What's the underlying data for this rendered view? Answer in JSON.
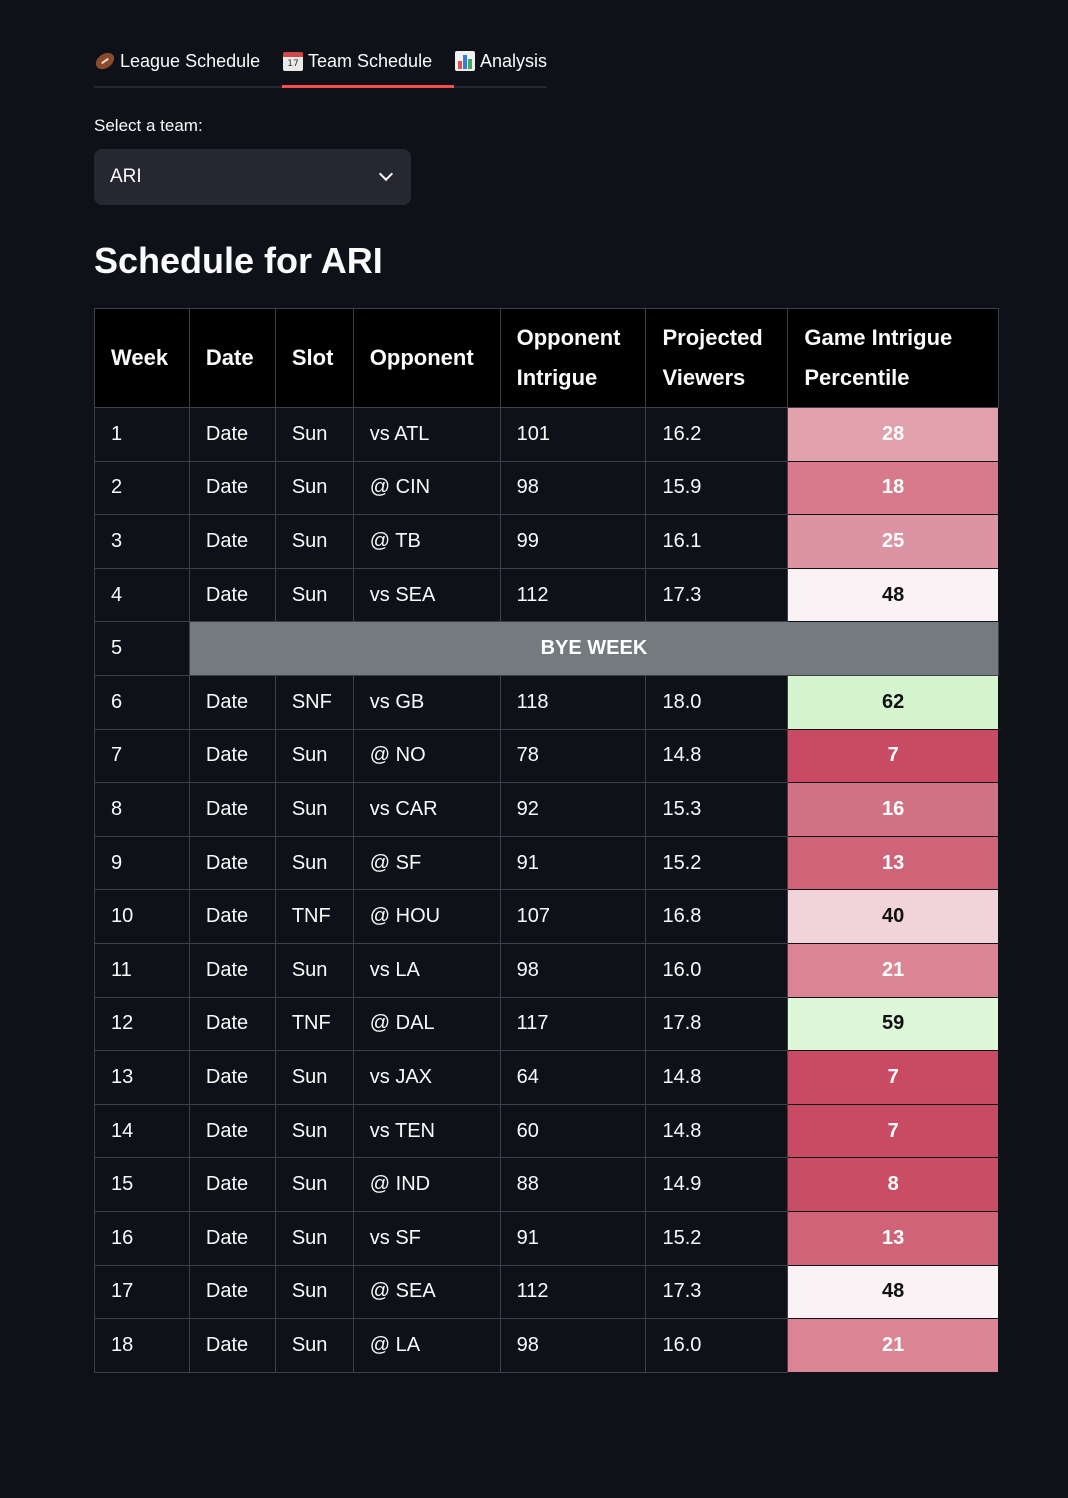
{
  "tabs": [
    {
      "label": "League Schedule",
      "icon": "football-icon"
    },
    {
      "label": "Team Schedule",
      "icon": "calendar-icon",
      "icon_text": "17"
    },
    {
      "label": "Analysis",
      "icon": "bar-chart-icon"
    }
  ],
  "active_tab": 1,
  "team_select": {
    "label": "Select a team:",
    "value": "ARI"
  },
  "heading": "Schedule for ARI",
  "table": {
    "headers": {
      "week": "Week",
      "date": "Date",
      "slot": "Slot",
      "opponent": "Opponent",
      "intrigue_l1": "Opponent",
      "intrigue_l2": "Intrigue",
      "viewers_l1": "Projected",
      "viewers_l2": "Viewers",
      "pct_l1": "Game Intrigue",
      "pct_l2": "Percentile"
    },
    "bye_label": "BYE WEEK",
    "rows": [
      {
        "week": "1",
        "date": "Date",
        "slot": "Sun",
        "opponent": "vs ATL",
        "intrigue": "101",
        "viewers": "16.2",
        "percentile": "28",
        "color": "#e0a1ad",
        "text_color": "#ffffff"
      },
      {
        "week": "2",
        "date": "Date",
        "slot": "Sun",
        "opponent": "@ CIN",
        "intrigue": "98",
        "viewers": "15.9",
        "percentile": "18",
        "color": "#d67a8c",
        "text_color": "#ffffff"
      },
      {
        "week": "3",
        "date": "Date",
        "slot": "Sun",
        "opponent": "@ TB",
        "intrigue": "99",
        "viewers": "16.1",
        "percentile": "25",
        "color": "#dd94a2",
        "text_color": "#ffffff"
      },
      {
        "week": "4",
        "date": "Date",
        "slot": "Sun",
        "opponent": "vs SEA",
        "intrigue": "112",
        "viewers": "17.3",
        "percentile": "48",
        "color": "#faf2f5",
        "text_color": "#111111"
      },
      {
        "week": "5",
        "bye": true
      },
      {
        "week": "6",
        "date": "Date",
        "slot": "SNF",
        "opponent": "vs GB",
        "intrigue": "118",
        "viewers": "18.0",
        "percentile": "62",
        "color": "#d4f5cd",
        "text_color": "#111111"
      },
      {
        "week": "7",
        "date": "Date",
        "slot": "Sun",
        "opponent": "@ NO",
        "intrigue": "78",
        "viewers": "14.8",
        "percentile": "7",
        "color": "#c94a63",
        "text_color": "#ffffff"
      },
      {
        "week": "8",
        "date": "Date",
        "slot": "Sun",
        "opponent": "vs CAR",
        "intrigue": "92",
        "viewers": "15.3",
        "percentile": "16",
        "color": "#d27285",
        "text_color": "#ffffff"
      },
      {
        "week": "9",
        "date": "Date",
        "slot": "Sun",
        "opponent": "@ SF",
        "intrigue": "91",
        "viewers": "15.2",
        "percentile": "13",
        "color": "#cf6378",
        "text_color": "#ffffff"
      },
      {
        "week": "10",
        "date": "Date",
        "slot": "TNF",
        "opponent": "@ HOU",
        "intrigue": "107",
        "viewers": "16.8",
        "percentile": "40",
        "color": "#f0d4da",
        "text_color": "#111111"
      },
      {
        "week": "11",
        "date": "Date",
        "slot": "Sun",
        "opponent": "vs LA",
        "intrigue": "98",
        "viewers": "16.0",
        "percentile": "21",
        "color": "#da8494",
        "text_color": "#ffffff"
      },
      {
        "week": "12",
        "date": "Date",
        "slot": "TNF",
        "opponent": "@ DAL",
        "intrigue": "117",
        "viewers": "17.8",
        "percentile": "59",
        "color": "#def7d8",
        "text_color": "#111111"
      },
      {
        "week": "13",
        "date": "Date",
        "slot": "Sun",
        "opponent": "vs JAX",
        "intrigue": "64",
        "viewers": "14.8",
        "percentile": "7",
        "color": "#c94a63",
        "text_color": "#ffffff"
      },
      {
        "week": "14",
        "date": "Date",
        "slot": "Sun",
        "opponent": "vs TEN",
        "intrigue": "60",
        "viewers": "14.8",
        "percentile": "7",
        "color": "#c94a63",
        "text_color": "#ffffff"
      },
      {
        "week": "15",
        "date": "Date",
        "slot": "Sun",
        "opponent": "@ IND",
        "intrigue": "88",
        "viewers": "14.9",
        "percentile": "8",
        "color": "#ca4d66",
        "text_color": "#ffffff"
      },
      {
        "week": "16",
        "date": "Date",
        "slot": "Sun",
        "opponent": "vs SF",
        "intrigue": "91",
        "viewers": "15.2",
        "percentile": "13",
        "color": "#cf6378",
        "text_color": "#ffffff"
      },
      {
        "week": "17",
        "date": "Date",
        "slot": "Sun",
        "opponent": "@ SEA",
        "intrigue": "112",
        "viewers": "17.3",
        "percentile": "48",
        "color": "#faf2f5",
        "text_color": "#111111"
      },
      {
        "week": "18",
        "date": "Date",
        "slot": "Sun",
        "opponent": "@ LA",
        "intrigue": "98",
        "viewers": "16.0",
        "percentile": "21",
        "color": "#da8494",
        "text_color": "#ffffff"
      }
    ]
  },
  "colors": {
    "background": "#0e1117",
    "accent": "#ff4b4b",
    "bye_bg": "#737b7e"
  }
}
